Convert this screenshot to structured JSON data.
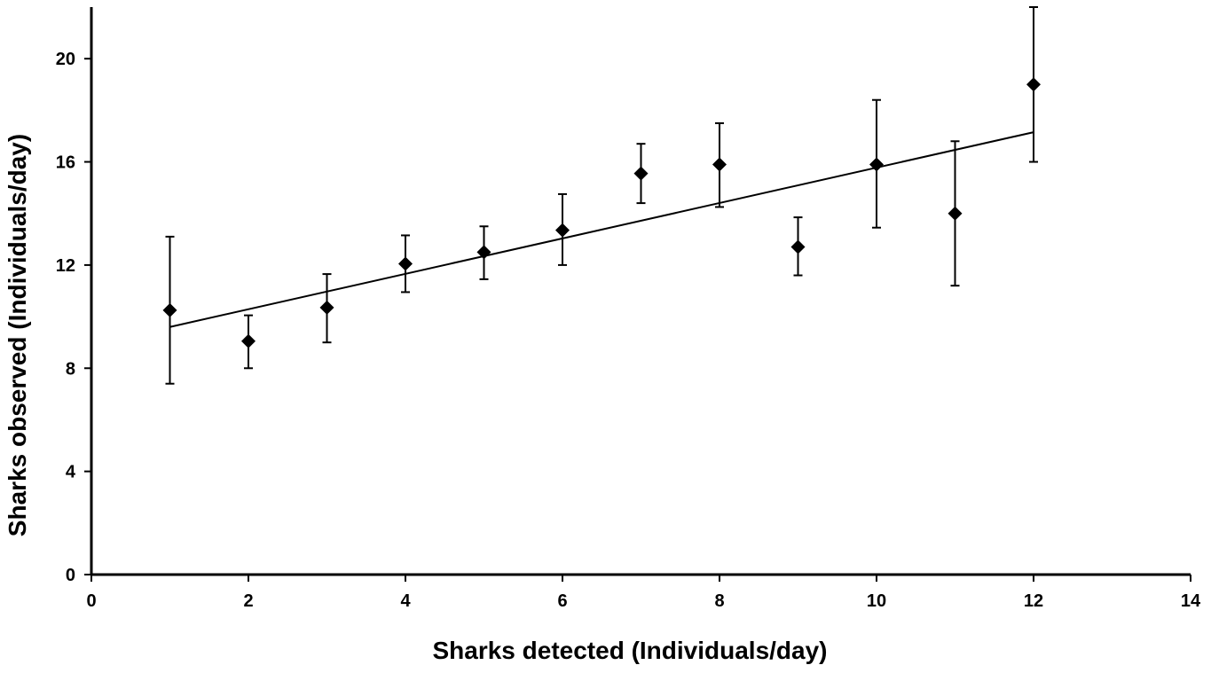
{
  "chart_data": {
    "type": "scatter",
    "xlabel": "Sharks detected (Individuals/day)",
    "ylabel": "Sharks observed (Individuals/day)",
    "xlim": [
      0,
      14
    ],
    "ylim": [
      0,
      22
    ],
    "x_ticks": [
      "0",
      "2",
      "4",
      "6",
      "8",
      "10",
      "12",
      "14"
    ],
    "y_ticks": [
      "0",
      "4",
      "8",
      "12",
      "16",
      "20"
    ],
    "grid": false,
    "legend": "none",
    "marker": "diamond",
    "color": "#000000",
    "points": [
      {
        "x": 1,
        "y": 10.25,
        "err_low": 7.4,
        "err_high": 13.1
      },
      {
        "x": 2,
        "y": 9.05,
        "err_low": 8.0,
        "err_high": 10.05
      },
      {
        "x": 3,
        "y": 10.35,
        "err_low": 9.0,
        "err_high": 11.65
      },
      {
        "x": 4,
        "y": 12.05,
        "err_low": 10.95,
        "err_high": 13.15
      },
      {
        "x": 5,
        "y": 12.5,
        "err_low": 11.45,
        "err_high": 13.5
      },
      {
        "x": 6,
        "y": 13.35,
        "err_low": 12.0,
        "err_high": 14.75
      },
      {
        "x": 7,
        "y": 15.55,
        "err_low": 14.4,
        "err_high": 16.7
      },
      {
        "x": 8,
        "y": 15.9,
        "err_low": 14.25,
        "err_high": 17.5
      },
      {
        "x": 9,
        "y": 12.7,
        "err_low": 11.6,
        "err_high": 13.85
      },
      {
        "x": 10,
        "y": 15.9,
        "err_low": 13.45,
        "err_high": 18.4
      },
      {
        "x": 11,
        "y": 14.0,
        "err_low": 11.2,
        "err_high": 16.8
      },
      {
        "x": 12,
        "y": 19.0,
        "err_low": 16.0,
        "err_high": 22.0
      }
    ],
    "trendline": {
      "x1": 1,
      "y1": 9.6,
      "x2": 12,
      "y2": 17.15
    }
  }
}
